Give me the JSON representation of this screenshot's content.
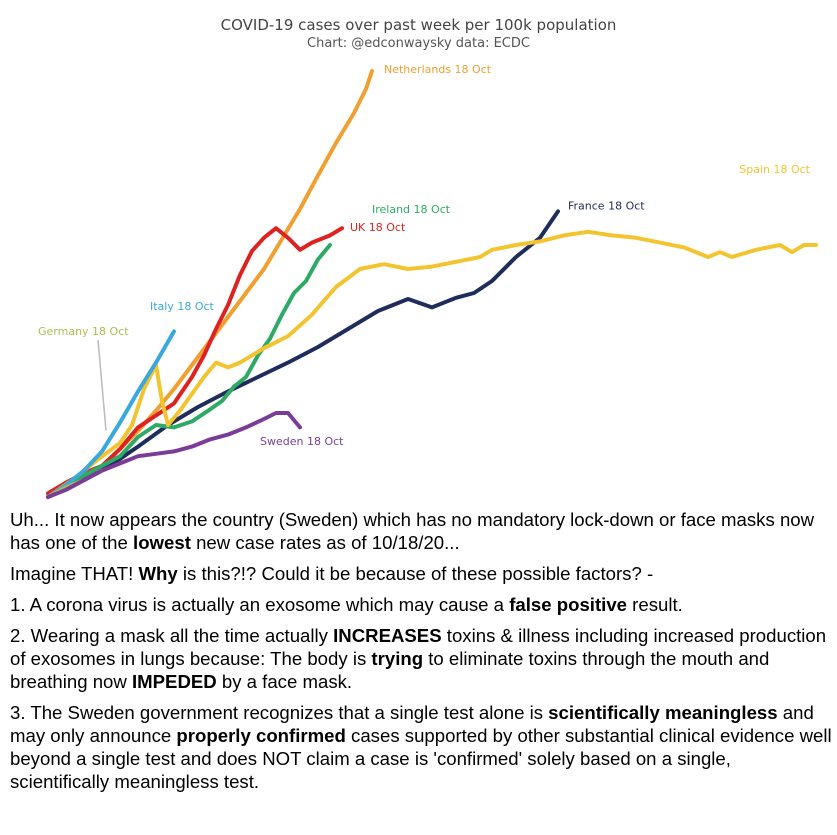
{
  "chart_data": {
    "type": "line",
    "title": "COVID-19 cases over past week per 100k population",
    "subtitle": "Chart: @edconwaysky data: ECDC",
    "xlabel": "",
    "ylabel": "",
    "grid": false,
    "legend": "inline labels at line ends",
    "series": [
      {
        "name": "Netherlands 18 Oct",
        "color": "#F0A030",
        "points": [
          [
            0,
            0
          ],
          [
            3,
            8
          ],
          [
            6,
            15
          ],
          [
            9,
            25
          ],
          [
            12,
            40
          ],
          [
            15,
            55
          ],
          [
            18,
            72
          ],
          [
            21,
            90
          ],
          [
            24,
            110
          ],
          [
            27,
            130
          ],
          [
            30,
            150
          ],
          [
            33,
            170
          ],
          [
            36,
            190
          ],
          [
            39,
            215
          ],
          [
            42,
            240
          ],
          [
            45,
            268
          ],
          [
            48,
            295
          ],
          [
            51,
            320
          ],
          [
            53,
            340
          ],
          [
            54,
            355
          ]
        ]
      },
      {
        "name": "France 18 Oct",
        "color": "#1F2D5C",
        "points": [
          [
            0,
            0
          ],
          [
            5,
            12
          ],
          [
            10,
            25
          ],
          [
            15,
            42
          ],
          [
            20,
            60
          ],
          [
            25,
            75
          ],
          [
            30,
            88
          ],
          [
            35,
            100
          ],
          [
            40,
            112
          ],
          [
            45,
            125
          ],
          [
            50,
            140
          ],
          [
            55,
            155
          ],
          [
            60,
            165
          ],
          [
            64,
            158
          ],
          [
            68,
            166
          ],
          [
            71,
            170
          ],
          [
            74,
            180
          ],
          [
            78,
            200
          ],
          [
            82,
            216
          ],
          [
            85,
            238
          ]
        ]
      },
      {
        "name": "UK 18 Oct",
        "color": "#DD2222",
        "points": [
          [
            0,
            3
          ],
          [
            3,
            12
          ],
          [
            6,
            20
          ],
          [
            9,
            26
          ],
          [
            12,
            40
          ],
          [
            15,
            58
          ],
          [
            18,
            68
          ],
          [
            21,
            78
          ],
          [
            24,
            100
          ],
          [
            26,
            118
          ],
          [
            28,
            140
          ],
          [
            30,
            160
          ],
          [
            32,
            185
          ],
          [
            34,
            205
          ],
          [
            36,
            216
          ],
          [
            38,
            224
          ],
          [
            40,
            216
          ],
          [
            42,
            206
          ],
          [
            44,
            212
          ],
          [
            47,
            218
          ],
          [
            49,
            224
          ]
        ]
      },
      {
        "name": "Ireland 18 Oct",
        "color": "#2EAA66",
        "points": [
          [
            0,
            0
          ],
          [
            3,
            10
          ],
          [
            6,
            18
          ],
          [
            9,
            26
          ],
          [
            12,
            34
          ],
          [
            15,
            50
          ],
          [
            18,
            60
          ],
          [
            21,
            58
          ],
          [
            24,
            63
          ],
          [
            27,
            73
          ],
          [
            29,
            80
          ],
          [
            31,
            92
          ],
          [
            33,
            100
          ],
          [
            35,
            118
          ],
          [
            37,
            132
          ],
          [
            39,
            152
          ],
          [
            41,
            170
          ],
          [
            43,
            180
          ],
          [
            45,
            198
          ],
          [
            47,
            210
          ]
        ]
      },
      {
        "name": "Spain 18 Oct",
        "color": "#F2C530",
        "points": [
          [
            0,
            0
          ],
          [
            4,
            14
          ],
          [
            8,
            30
          ],
          [
            12,
            45
          ],
          [
            14,
            60
          ],
          [
            16,
            90
          ],
          [
            18,
            110
          ],
          [
            19,
            80
          ],
          [
            20,
            60
          ],
          [
            22,
            72
          ],
          [
            24,
            86
          ],
          [
            26,
            100
          ],
          [
            28,
            112
          ],
          [
            30,
            108
          ],
          [
            32,
            112
          ],
          [
            36,
            124
          ],
          [
            40,
            134
          ],
          [
            44,
            152
          ],
          [
            48,
            175
          ],
          [
            52,
            190
          ],
          [
            56,
            194
          ],
          [
            60,
            190
          ],
          [
            64,
            192
          ],
          [
            68,
            196
          ],
          [
            72,
            200
          ],
          [
            74,
            206
          ],
          [
            78,
            210
          ],
          [
            82,
            213
          ],
          [
            86,
            218
          ],
          [
            90,
            221
          ],
          [
            94,
            218
          ],
          [
            98,
            216
          ],
          [
            102,
            212
          ],
          [
            106,
            208
          ],
          [
            110,
            200
          ],
          [
            112,
            204
          ],
          [
            114,
            200
          ],
          [
            118,
            206
          ],
          [
            122,
            210
          ],
          [
            124,
            204
          ],
          [
            126,
            210
          ],
          [
            128,
            210
          ]
        ]
      },
      {
        "name": "Italy 18 Oct",
        "color": "#3AA8DC",
        "points": [
          [
            0,
            0
          ],
          [
            3,
            10
          ],
          [
            6,
            22
          ],
          [
            9,
            38
          ],
          [
            12,
            62
          ],
          [
            15,
            88
          ],
          [
            18,
            112
          ],
          [
            21,
            138
          ]
        ]
      },
      {
        "name": "Germany 18 Oct",
        "color": "#A8C050",
        "points": [
          [
            0,
            0
          ],
          [
            3,
            8
          ],
          [
            6,
            14
          ],
          [
            9,
            22
          ]
        ]
      },
      {
        "name": "Sweden 18 Oct",
        "color": "#7A3C96",
        "points": [
          [
            0,
            0
          ],
          [
            3,
            6
          ],
          [
            6,
            14
          ],
          [
            9,
            22
          ],
          [
            12,
            28
          ],
          [
            15,
            34
          ],
          [
            18,
            36
          ],
          [
            21,
            38
          ],
          [
            24,
            42
          ],
          [
            27,
            48
          ],
          [
            30,
            52
          ],
          [
            33,
            58
          ],
          [
            36,
            65
          ],
          [
            38,
            70
          ],
          [
            40,
            70
          ],
          [
            42,
            58
          ]
        ]
      }
    ]
  },
  "text": {
    "p1_a": "Uh... It now appears the country (Sweden) which has no mandatory lock-down or face masks now has one of the ",
    "p1_b": "lowest",
    "p1_c": " new case rates as of 10/18/20...",
    "p2_a": "Imagine THAT! ",
    "p2_b": "Why",
    "p2_c": " is this?!? Could it be because of these possible factors? -",
    "p3_a": "1. A corona virus is actually an exosome which may cause a ",
    "p3_b": "false positive",
    "p3_c": " result.",
    "p4_a": "2. Wearing a mask all the time actually ",
    "p4_b": "INCREASES",
    "p4_c": " toxins & illness including increased production of exosomes in lungs because: The body is ",
    "p4_d": "trying",
    "p4_e": " to eliminate toxins through the mouth and breathing now ",
    "p4_f": "IMPEDED",
    "p4_g": " by a face mask.",
    "p5_a": "3. The Sweden government recognizes that a single test alone is ",
    "p5_b": "scientifically meaningless",
    "p5_c": " and may only announce ",
    "p5_d": "properly confirmed",
    "p5_e": " cases supported by other substantial clinical evidence well beyond a single test and does NOT claim a case is 'confirmed' solely based on a single, scientifically meaningless test."
  }
}
